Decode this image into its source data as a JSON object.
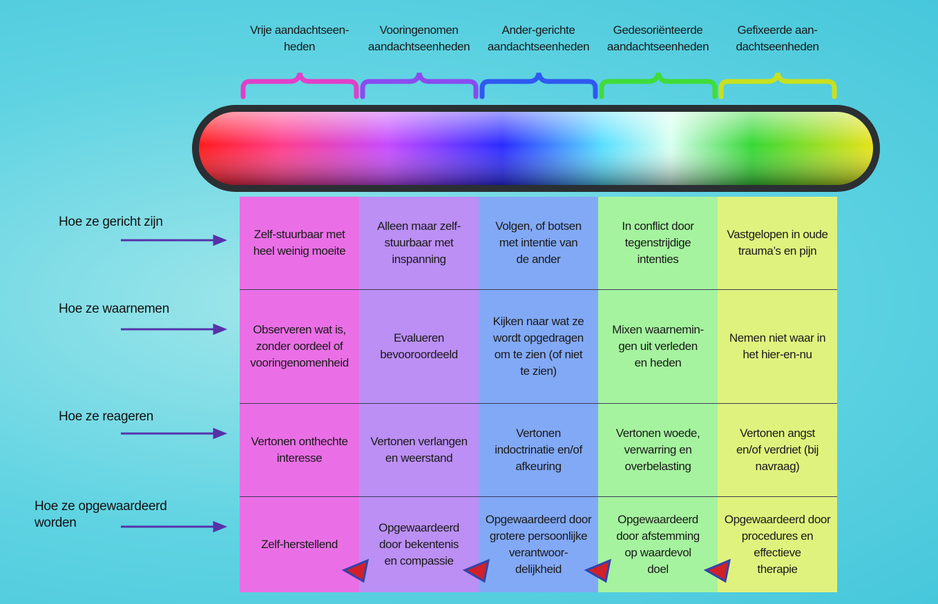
{
  "columns": [
    {
      "header": "Vrije aandachtseen-\nheden",
      "cells": [
        "Zelf-stuurbaar met\nheel weinig moeite",
        "Observeren wat is,\nzonder oordeel of\nvooringenomenheid",
        "Vertonen onthechte\ninteresse",
        "Zelf-herstellend"
      ]
    },
    {
      "header": "Vooringenomen\naandachtseenheden",
      "cells": [
        "Alleen maar zelf-\nstuurbaar met\ninspanning",
        "Evalueren\nbevooroordeeld",
        "Vertonen verlangen\nen weerstand",
        "Opgewaardeerd\ndoor bekentenis\nen compassie"
      ]
    },
    {
      "header": "Ander-gerichte\naandachtseenheden",
      "cells": [
        "Volgen, of botsen\nmet intentie van\nde ander",
        "Kijken naar wat ze\nwordt opgedragen\nom te zien (of niet\nte zien)",
        "Vertonen\nindoctrinatie en/of\nafkeuring",
        "Opgewaardeerd door\ngrotere persoonlijke\nverantwoor-\ndelijkheid"
      ]
    },
    {
      "header": "Gedesoriënteerde\naandachtseenheden",
      "cells": [
        "In conflict door\ntegenstrijdige\nintenties",
        "Mixen waarnemin-\ngen uit verleden\nen heden",
        "Vertonen woede,\nverwarring en\noverbelasting",
        "Opgewaardeerd\ndoor afstemming\nop waardevol\ndoel"
      ]
    },
    {
      "header": "Gefixeerde aan-\ndachtseenheden",
      "cells": [
        "Vastgelopen in oude\ntrauma’s en pijn",
        "Nemen niet waar in\nhet hier-en-nu",
        "Vertonen angst\nen/of verdriet (bij\nnavraag)",
        "Opgewaardeerd door\nprocedures en\neffectieve\ntherapie"
      ]
    }
  ],
  "rows": [
    "Hoe ze gericht zijn",
    "Hoe ze waarnemen",
    "Hoe ze reageren",
    "Hoe ze opgewaardeerd\nworden"
  ]
}
